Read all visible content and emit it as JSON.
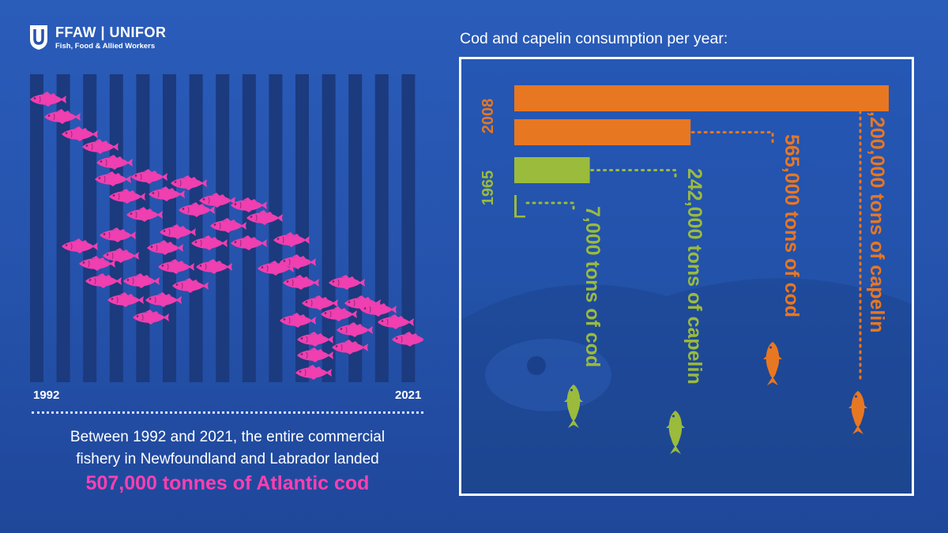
{
  "logo": {
    "brand": "FFAW | UNIFOR",
    "subtitle": "Fish, Food & Allied Workers"
  },
  "left": {
    "year_start": "1992",
    "year_end": "2021",
    "caption_line1": "Between 1992 and 2021, the entire commercial",
    "caption_line2": "fishery in Newfoundland and Labrador landed",
    "caption_highlight": "507,000 tonnes of Atlantic cod"
  },
  "right": {
    "title": "Cod and capelin consumption per year:"
  },
  "colors": {
    "orange": "#e87722",
    "green": "#9bbb3c",
    "pink": "#ef3fb0",
    "stripe": "#1c3a7e"
  },
  "chart_data": {
    "type": "bar",
    "orientation": "horizontal",
    "title": "Cod and capelin consumption per year:",
    "unit": "tons",
    "groups": [
      {
        "year": "2008",
        "color": "#e87722",
        "bars": [
          {
            "label": "1,200,000 tons of capelin",
            "value": 1200000
          },
          {
            "label": "565,000 tons of cod",
            "value": 565000
          }
        ]
      },
      {
        "year": "1965",
        "color": "#9bbb3c",
        "bars": [
          {
            "label": "242,000 tons of capelin",
            "value": 242000
          },
          {
            "label": "7,000 tons of cod",
            "value": 7000
          }
        ]
      }
    ]
  }
}
